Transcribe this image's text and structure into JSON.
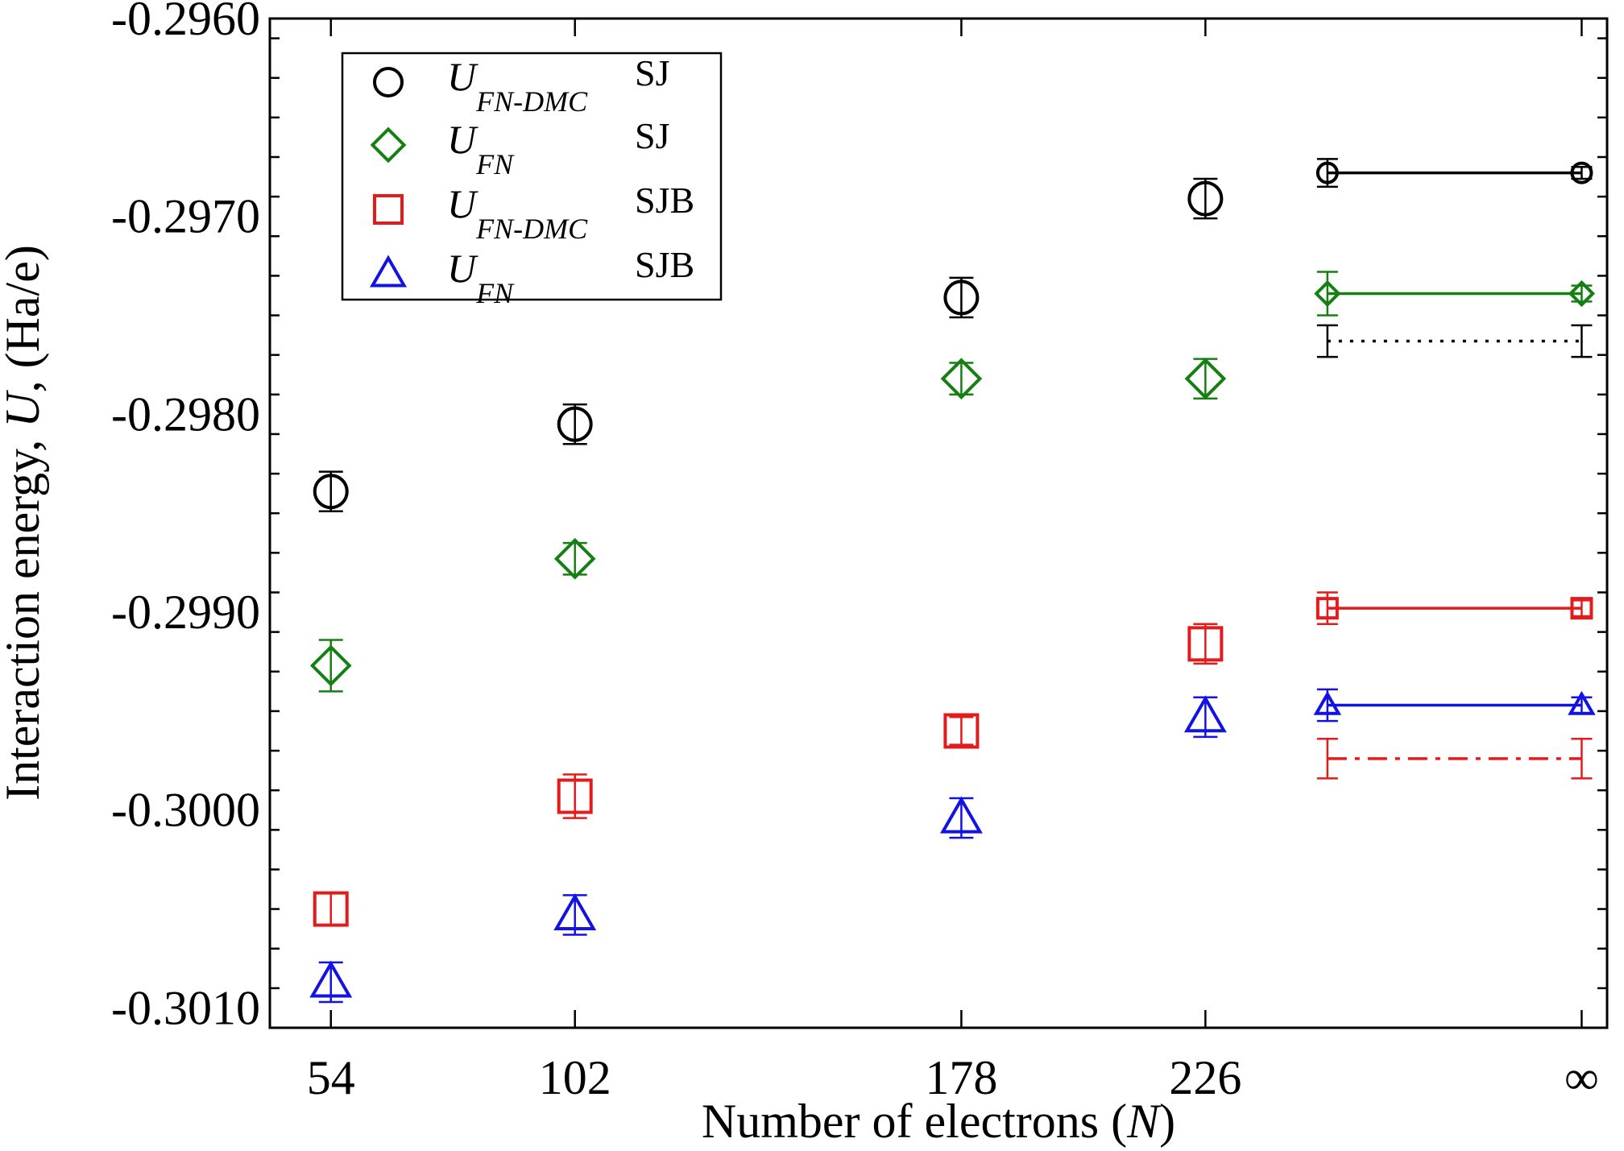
{
  "chart_data": {
    "type": "scatter",
    "xlabel_prefix": "Number of electrons (",
    "xlabel_var": "N",
    "xlabel_suffix": ")",
    "ylabel_prefix": "Interaction energy, ",
    "ylabel_var": "U",
    "ylabel_suffix": ", (Ha/e)",
    "xticks": [
      {
        "pos": 54,
        "label": "54"
      },
      {
        "pos": 102,
        "label": "102"
      },
      {
        "pos": 178,
        "label": "178"
      },
      {
        "pos": 226,
        "label": "226"
      },
      {
        "pos": 300,
        "label": "∞"
      }
    ],
    "xlim": [
      42,
      305
    ],
    "ylim": [
      -0.3011,
      -0.296
    ],
    "yticks": [
      {
        "value": -0.296,
        "label": "-0.2960"
      },
      {
        "value": -0.297,
        "label": "-0.2970"
      },
      {
        "value": -0.298,
        "label": "-0.2980"
      },
      {
        "value": -0.299,
        "label": "-0.2990"
      },
      {
        "value": -0.3,
        "label": "-0.3000"
      },
      {
        "value": -0.301,
        "label": "-0.3010"
      }
    ],
    "y_minor_step": 0.0002,
    "legend_position": "top-left",
    "series": [
      {
        "name_main": "U",
        "name_sub": "FN-DMC",
        "tag": "SJ",
        "marker": "circle",
        "color": "#000000",
        "points": [
          {
            "x": 54,
            "y": -0.29839,
            "err": 0.0001
          },
          {
            "x": 102,
            "y": -0.29805,
            "err": 0.0001
          },
          {
            "x": 178,
            "y": -0.29741,
            "err": 0.0001
          },
          {
            "x": 226,
            "y": -0.29691,
            "err": 0.0001
          },
          {
            "x": 250,
            "y": -0.29678,
            "err": 7e-05
          },
          {
            "x": 300,
            "y": -0.29678,
            "err": 3e-05
          }
        ]
      },
      {
        "name_main": "U",
        "name_sub": "FN",
        "tag": "SJ",
        "marker": "diamond",
        "color": "#158012",
        "points": [
          {
            "x": 54,
            "y": -0.29927,
            "err": 0.00013
          },
          {
            "x": 102,
            "y": -0.29873,
            "err": 8e-05
          },
          {
            "x": 178,
            "y": -0.29782,
            "err": 8e-05
          },
          {
            "x": 226,
            "y": -0.29782,
            "err": 0.0001
          },
          {
            "x": 250,
            "y": -0.29739,
            "err": 0.00011
          },
          {
            "x": 300,
            "y": -0.29739,
            "err": 4e-05
          }
        ]
      },
      {
        "name_main": "U",
        "name_sub": "FN-DMC",
        "tag": "SJB",
        "marker": "square",
        "color": "#e51a1a",
        "points": [
          {
            "x": 54,
            "y": -0.3005,
            "err": 8e-05
          },
          {
            "x": 102,
            "y": -0.29993,
            "err": 0.00011
          },
          {
            "x": 178,
            "y": -0.2996,
            "err": 7e-05
          },
          {
            "x": 226,
            "y": -0.29916,
            "err": 0.0001
          },
          {
            "x": 250,
            "y": -0.29898,
            "err": 8e-05
          },
          {
            "x": 300,
            "y": -0.29898,
            "err": 4e-05
          }
        ]
      },
      {
        "name_main": "U",
        "name_sub": "FN",
        "tag": "SJB",
        "marker": "triangle",
        "color": "#1212e5",
        "points": [
          {
            "x": 54,
            "y": -0.30087,
            "err": 0.0001
          },
          {
            "x": 102,
            "y": -0.30053,
            "err": 0.0001
          },
          {
            "x": 178,
            "y": -0.30004,
            "err": 0.0001
          },
          {
            "x": 226,
            "y": -0.29953,
            "err": 0.0001
          },
          {
            "x": 250,
            "y": -0.29947,
            "err": 8e-05
          },
          {
            "x": 300,
            "y": -0.29947,
            "err": 4e-05
          }
        ]
      }
    ],
    "extrapolation_lines": [
      {
        "series": 0,
        "style": "solid",
        "y": -0.29678
      },
      {
        "series": 1,
        "style": "solid",
        "y": -0.29739
      },
      {
        "series": 2,
        "style": "solid",
        "y": -0.29898
      },
      {
        "series": 3,
        "style": "solid",
        "y": -0.29947
      }
    ],
    "reference_lines": [
      {
        "style": "dotted",
        "color": "#000000",
        "y": -0.29763,
        "err": 8e-05
      },
      {
        "style": "dashdot",
        "color": "#e51a1a",
        "y": -0.29974,
        "err": 0.0001
      }
    ]
  }
}
